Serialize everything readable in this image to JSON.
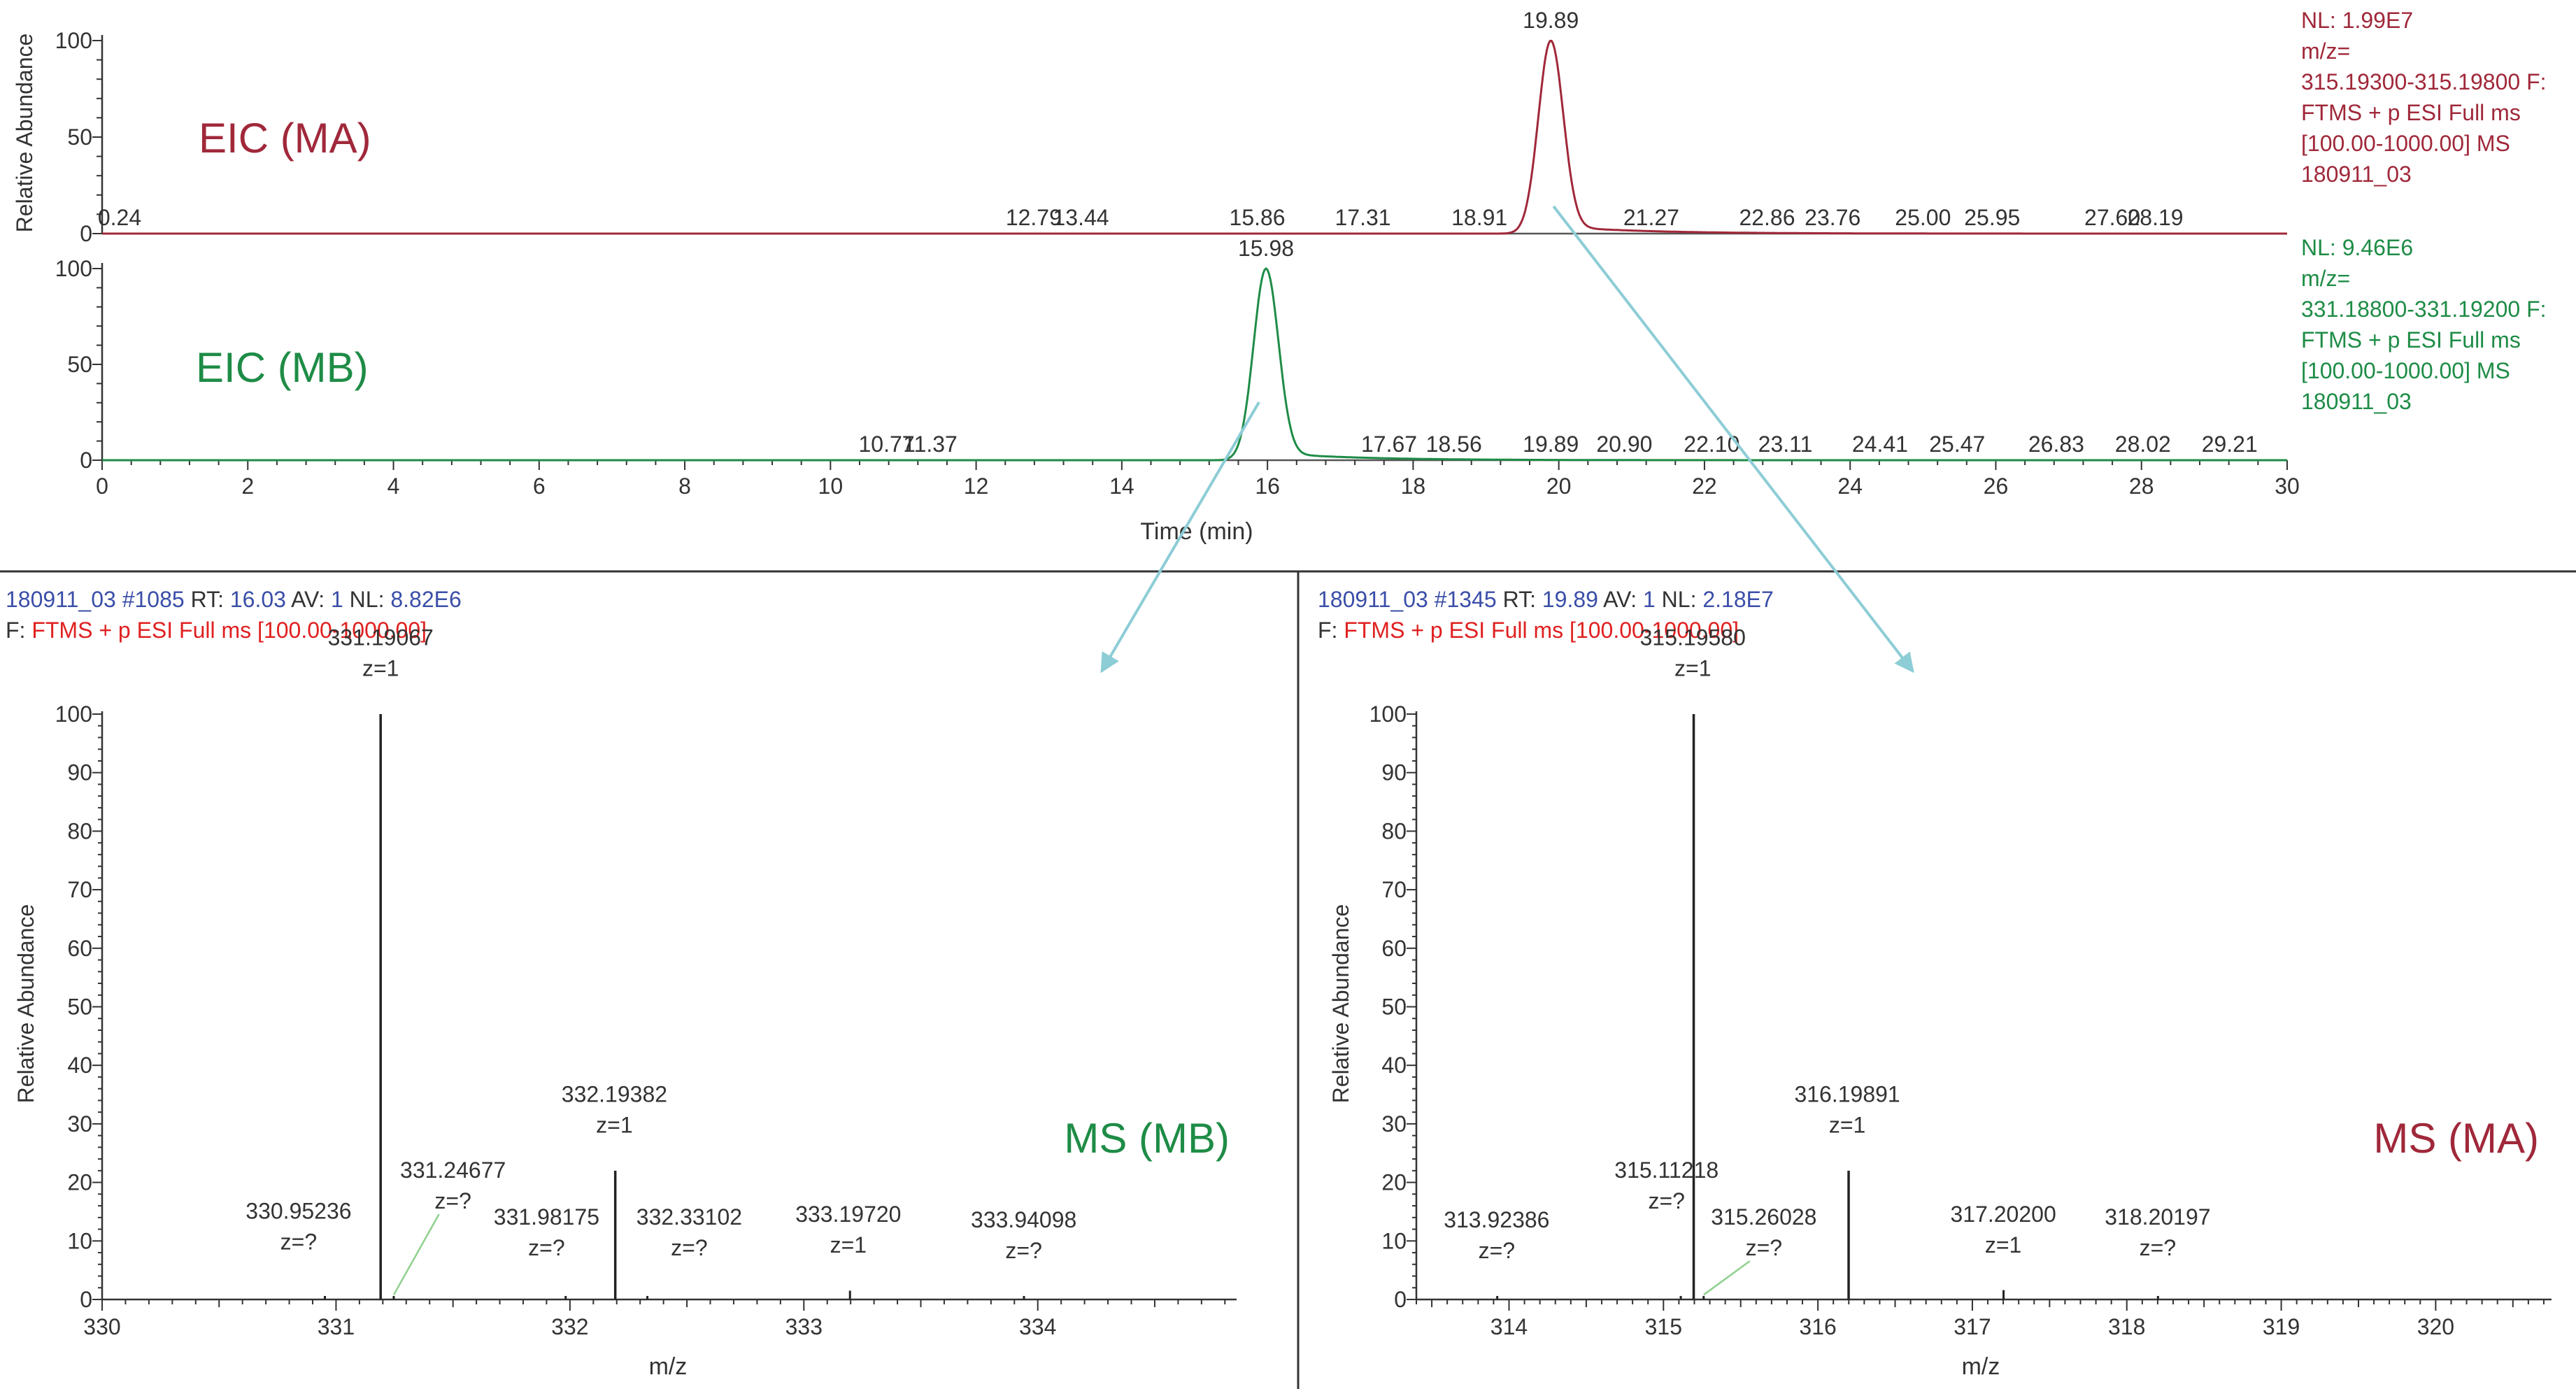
{
  "colors": {
    "ma": "#a0283a",
    "mb": "#1e8c46",
    "axis": "#333333",
    "arrow": "#8dcdd6",
    "header_blue": "#3a4ea8",
    "header_red": "#e02020",
    "text": "#333333"
  },
  "chart_data": [
    {
      "type": "line",
      "id": "eic_ma",
      "title": "EIC (MA)",
      "ylabel": "Relative Abundance",
      "xlim": [
        0,
        30
      ],
      "ylim": [
        0,
        100
      ],
      "yticks": [
        0,
        50,
        100
      ],
      "base_peak": {
        "x": 19.89,
        "y": 100,
        "sigma": 0.17
      },
      "peak_labels": [
        "0.24",
        "12.79",
        "13.44",
        "15.86",
        "17.31",
        "18.91",
        "19.89",
        "21.27",
        "22.86",
        "23.76",
        "25.00",
        "25.95",
        "27.60",
        "28.19"
      ],
      "peak_label_x": [
        0.24,
        12.79,
        13.44,
        15.86,
        17.31,
        18.91,
        19.89,
        21.27,
        22.86,
        23.76,
        25.0,
        25.95,
        27.6,
        28.19
      ],
      "info": [
        "NL: 1.99E7",
        "m/z=",
        "315.19300-315.19800 F:",
        "FTMS + p ESI Full ms",
        "[100.00-1000.00]  MS",
        "180911_03"
      ]
    },
    {
      "type": "line",
      "id": "eic_mb",
      "title": "EIC (MB)",
      "xlabel": "Time (min)",
      "xlim": [
        0,
        30
      ],
      "ylim": [
        0,
        100
      ],
      "yticks": [
        0,
        50,
        100
      ],
      "xticks": [
        0,
        2,
        4,
        6,
        8,
        10,
        12,
        14,
        16,
        18,
        20,
        22,
        24,
        26,
        28,
        30
      ],
      "base_peak": {
        "x": 15.98,
        "y": 100,
        "sigma": 0.17
      },
      "peak_labels": [
        "10.77",
        "11.37",
        "15.98",
        "17.67",
        "18.56",
        "19.89",
        "20.90",
        "22.10",
        "23.11",
        "24.41",
        "25.47",
        "26.83",
        "28.02",
        "29.21"
      ],
      "peak_label_x": [
        10.77,
        11.37,
        15.98,
        17.67,
        18.56,
        19.89,
        20.9,
        22.1,
        23.11,
        24.41,
        25.47,
        26.83,
        28.02,
        29.21
      ],
      "info": [
        "NL: 9.46E6",
        "m/z=",
        "331.18800-331.19200 F:",
        "FTMS + p ESI Full ms",
        "[100.00-1000.00]  MS",
        "180911_03"
      ]
    },
    {
      "type": "bar",
      "id": "ms_mb",
      "title": "MS (MB)",
      "header1": [
        "180911_03 #1085",
        "RT:",
        "16.03",
        "AV:",
        "1",
        "NL:",
        "8.82E6"
      ],
      "header2": [
        "F:",
        "FTMS + p ESI Full ms [100.00-1000.00]"
      ],
      "xlabel": "m/z",
      "ylabel": "Relative Abundance",
      "xlim": [
        330,
        334.85
      ],
      "ylim": [
        0,
        100
      ],
      "xticks": [
        330,
        331,
        332,
        333,
        334
      ],
      "yticks": [
        0,
        10,
        20,
        30,
        40,
        50,
        60,
        70,
        80,
        90,
        100
      ],
      "peaks": [
        {
          "mz": 330.95236,
          "intensity": 0.4,
          "label": "330.95236",
          "charge": "z=?",
          "label_mz": 330.84,
          "label_y": 9
        },
        {
          "mz": 331.19067,
          "intensity": 100,
          "label": "331.19067",
          "charge": "z=1",
          "label_mz": 331.19067,
          "label_y": 107
        },
        {
          "mz": 331.24677,
          "intensity": 0.4,
          "label": "331.24677",
          "charge": "z=?",
          "label_mz": 331.5,
          "label_y": 16
        },
        {
          "mz": 331.98175,
          "intensity": 0.4,
          "label": "331.98175",
          "charge": "z=?",
          "label_mz": 331.9,
          "label_y": 8
        },
        {
          "mz": 332.19382,
          "intensity": 22,
          "label": "332.19382",
          "charge": "z=1",
          "label_mz": 332.19,
          "label_y": 29
        },
        {
          "mz": 332.33102,
          "intensity": 0.4,
          "label": "332.33102",
          "charge": "z=?",
          "label_mz": 332.51,
          "label_y": 8
        },
        {
          "mz": 333.1972,
          "intensity": 1.5,
          "label": "333.19720",
          "charge": "z=1",
          "label_mz": 333.19,
          "label_y": 8.5
        },
        {
          "mz": 333.94098,
          "intensity": 0.3,
          "label": "333.94098",
          "charge": "z=?",
          "label_mz": 333.94,
          "label_y": 7.5
        }
      ]
    },
    {
      "type": "bar",
      "id": "ms_ma",
      "title": "MS (MA)",
      "header1": [
        "180911_03 #1345",
        "RT:",
        "19.89",
        "AV:",
        "1",
        "NL:",
        "2.18E7"
      ],
      "header2": [
        "F:",
        "FTMS + p ESI Full ms [100.00-1000.00]"
      ],
      "xlabel": "m/z",
      "ylabel": "Relative Abundance",
      "xlim": [
        313.4,
        320.75
      ],
      "ylim": [
        0,
        100
      ],
      "xticks": [
        314,
        315,
        316,
        317,
        318,
        319,
        320
      ],
      "yticks": [
        0,
        10,
        20,
        30,
        40,
        50,
        60,
        70,
        80,
        90,
        100
      ],
      "peaks": [
        {
          "mz": 313.92386,
          "intensity": 0.3,
          "label": "313.92386",
          "charge": "z=?",
          "label_mz": 313.92,
          "label_y": 7.5
        },
        {
          "mz": 315.11218,
          "intensity": 0.4,
          "label": "315.11218",
          "charge": "z=?",
          "label_mz": 315.02,
          "label_y": 16
        },
        {
          "mz": 315.1958,
          "intensity": 100,
          "label": "315.19580",
          "charge": "z=1",
          "label_mz": 315.19,
          "label_y": 107
        },
        {
          "mz": 315.26028,
          "intensity": 0.4,
          "label": "315.26028",
          "charge": "z=?",
          "label_mz": 315.65,
          "label_y": 8
        },
        {
          "mz": 316.19891,
          "intensity": 22,
          "label": "316.19891",
          "charge": "z=1",
          "label_mz": 316.19,
          "label_y": 29
        },
        {
          "mz": 317.202,
          "intensity": 1.6,
          "label": "317.20200",
          "charge": "z=1",
          "label_mz": 317.2,
          "label_y": 8.5
        },
        {
          "mz": 318.20197,
          "intensity": 0.4,
          "label": "318.20197",
          "charge": "z=?",
          "label_mz": 318.2,
          "label_y": 8
        }
      ]
    }
  ]
}
